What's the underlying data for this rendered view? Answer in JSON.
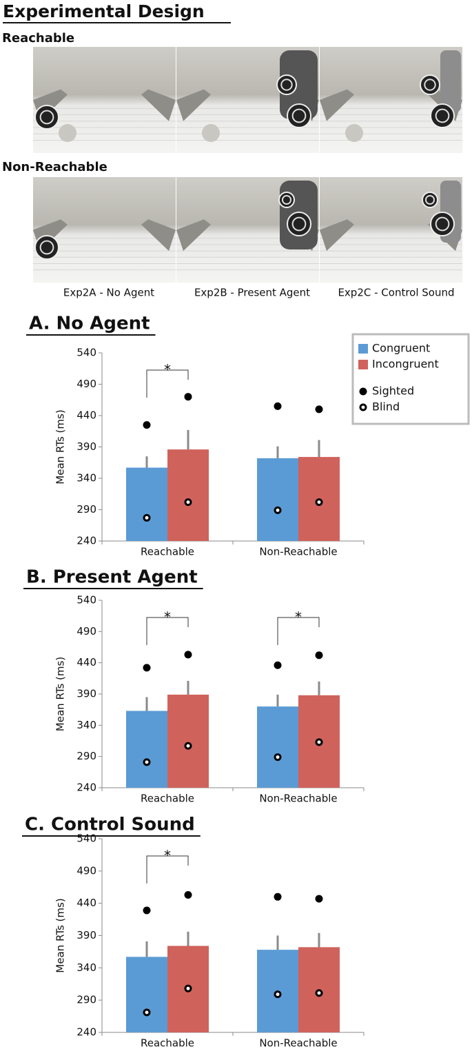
{
  "design": {
    "title": "Experimental Design",
    "rows": [
      "Reachable",
      "Non-Reachable"
    ],
    "columns": [
      "Exp2A - No Agent",
      "Exp2B - Present Agent",
      "Exp2C - Control Sound"
    ]
  },
  "chart_data": [
    {
      "type": "bar",
      "title": "A. No Agent",
      "y_label": "Mean RTs (ms)",
      "categories": [
        "Reachable",
        "Non-Reachable"
      ],
      "ylim": [
        240,
        540
      ],
      "yticks": [
        240,
        290,
        340,
        390,
        440,
        490,
        540
      ],
      "legend": "upper right",
      "series": [
        {
          "name": "Congruent",
          "color": "#5b9bd5",
          "values": [
            357,
            372
          ],
          "errors": [
            18,
            19
          ]
        },
        {
          "name": "Incongruent",
          "color": "#d0625c",
          "values": [
            386,
            374
          ],
          "errors": [
            31,
            27
          ]
        },
        {
          "name": "Sighted",
          "kind": "dot",
          "marker": "filled",
          "color": "#000000",
          "values": [
            [
              425,
              470
            ],
            [
              455,
              450
            ]
          ]
        },
        {
          "name": "Blind",
          "kind": "dot",
          "marker": "hollow",
          "color": "#000000",
          "values": [
            [
              277,
              302
            ],
            [
              289,
              302
            ]
          ]
        }
      ],
      "significance": [
        {
          "category": "Reachable",
          "label": "*"
        }
      ]
    },
    {
      "type": "bar",
      "title": "B. Present Agent",
      "y_label": "Mean RTs (ms)",
      "categories": [
        "Reachable",
        "Non-Reachable"
      ],
      "ylim": [
        240,
        540
      ],
      "yticks": [
        240,
        290,
        340,
        390,
        440,
        490,
        540
      ],
      "series": [
        {
          "color": "#5b9bd5",
          "values": [
            363,
            370
          ],
          "errors": [
            22,
            19
          ]
        },
        {
          "color": "#d0625c",
          "values": [
            389,
            388
          ],
          "errors": [
            22,
            22
          ]
        },
        {
          "kind": "dot",
          "marker": "filled",
          "color": "#000000",
          "values": [
            [
              432,
              453
            ],
            [
              436,
              452
            ]
          ]
        },
        {
          "kind": "dot",
          "marker": "hollow",
          "color": "#000000",
          "values": [
            [
              281,
              307
            ],
            [
              289,
              313
            ]
          ]
        }
      ],
      "significance": [
        {
          "category": "Reachable",
          "label": "*"
        },
        {
          "category": "Non-Reachable",
          "label": "*"
        }
      ]
    },
    {
      "type": "bar",
      "title": "C. Control Sound",
      "y_label": "Mean RTs (ms)",
      "categories": [
        "Reachable",
        "Non-Reachable"
      ],
      "ylim": [
        240,
        540
      ],
      "yticks": [
        240,
        290,
        340,
        390,
        440,
        490,
        540
      ],
      "series": [
        {
          "color": "#5b9bd5",
          "values": [
            357,
            368
          ],
          "errors": [
            24,
            22
          ]
        },
        {
          "color": "#d0625c",
          "values": [
            374,
            372
          ],
          "errors": [
            22,
            22
          ]
        },
        {
          "kind": "dot",
          "marker": "filled",
          "color": "#000000",
          "values": [
            [
              429,
              453
            ],
            [
              450,
              447
            ]
          ]
        },
        {
          "kind": "dot",
          "marker": "hollow",
          "color": "#000000",
          "values": [
            [
              271,
              308
            ],
            [
              299,
              301
            ]
          ]
        }
      ],
      "significance": [
        {
          "category": "Reachable",
          "label": "*"
        }
      ]
    }
  ]
}
